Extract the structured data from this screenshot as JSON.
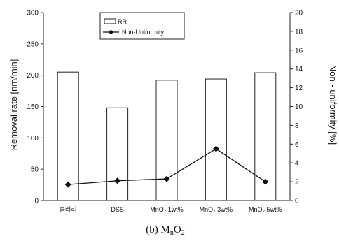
{
  "chart_data": {
    "type": "bar",
    "categories": [
      "슬러리",
      "DSS",
      "MnO₂ 1wt%",
      "MnO₂ 3wt%",
      "MnO₂ 5wt%"
    ],
    "series": [
      {
        "name": "RR",
        "type": "bar",
        "axis": "left",
        "values": [
          205,
          148,
          192,
          194,
          204
        ]
      },
      {
        "name": "Non-Uniformity",
        "type": "line",
        "axis": "right",
        "values": [
          1.7,
          2.1,
          2.3,
          5.5,
          2.0
        ]
      }
    ],
    "ylabel": "Removal rate [nm/min]",
    "ylim": [
      0,
      300
    ],
    "yticks": [
      0,
      50,
      100,
      150,
      200,
      250,
      300
    ],
    "y2label": "Non - uniformity [%]",
    "y2lim": [
      0,
      20
    ],
    "y2ticks": [
      0,
      2,
      4,
      6,
      8,
      10,
      12,
      14,
      16,
      18,
      20
    ],
    "legend_position": "top-left-inside",
    "grid": false,
    "colors": {
      "bar_fill": "#ffffff",
      "bar_stroke": "#222222",
      "line": "#111111"
    }
  },
  "caption": {
    "prefix": "(b) M",
    "sub1": "n",
    "mid": "O",
    "sub2": "2"
  }
}
